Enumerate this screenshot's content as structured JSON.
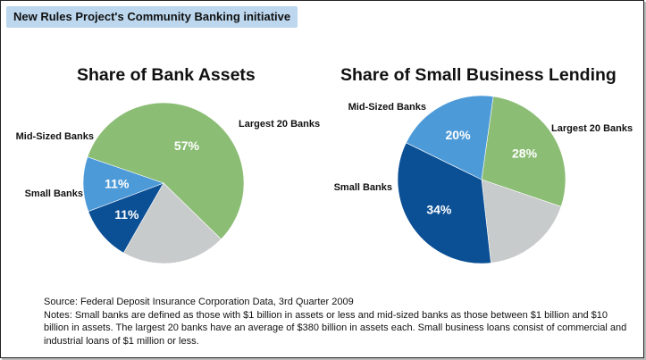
{
  "banner": "New Rules Project's Community Banking initiative",
  "chart_data": [
    {
      "type": "pie",
      "title": "Share of Bank Assets",
      "slices": [
        {
          "label": "Largest 20 Banks",
          "value": 57,
          "value_label": "57%",
          "color": "#8bbd74"
        },
        {
          "label": "",
          "value": 21,
          "value_label": "",
          "color": "#c8cbcb"
        },
        {
          "label": "Small Banks",
          "value": 11,
          "value_label": "11%",
          "color": "#0b4f95"
        },
        {
          "label": "Mid-Sized Banks",
          "value": 11,
          "value_label": "11%",
          "color": "#4d9ad8"
        }
      ]
    },
    {
      "type": "pie",
      "title": "Share of Small Business Lending",
      "slices": [
        {
          "label": "Largest 20 Banks",
          "value": 28,
          "value_label": "28%",
          "color": "#8bbd74"
        },
        {
          "label": "",
          "value": 18,
          "value_label": "",
          "color": "#c8cbcb"
        },
        {
          "label": "Small Banks",
          "value": 34,
          "value_label": "34%",
          "color": "#0b4f95"
        },
        {
          "label": "Mid-Sized Banks",
          "value": 20,
          "value_label": "20%",
          "color": "#4d9ad8"
        }
      ]
    }
  ],
  "source": "Source: Federal Deposit Insurance Corporation Data, 3rd Quarter 2009",
  "notes": "Notes: Small banks are defined as those with $1 billion in assets or less and mid-sized banks as those between $1 billion and $10 billion in assets.  The largest 20 banks have an average of $380 billion in assets each.  Small business loans consist of commercial and industrial loans of $1 million or less."
}
